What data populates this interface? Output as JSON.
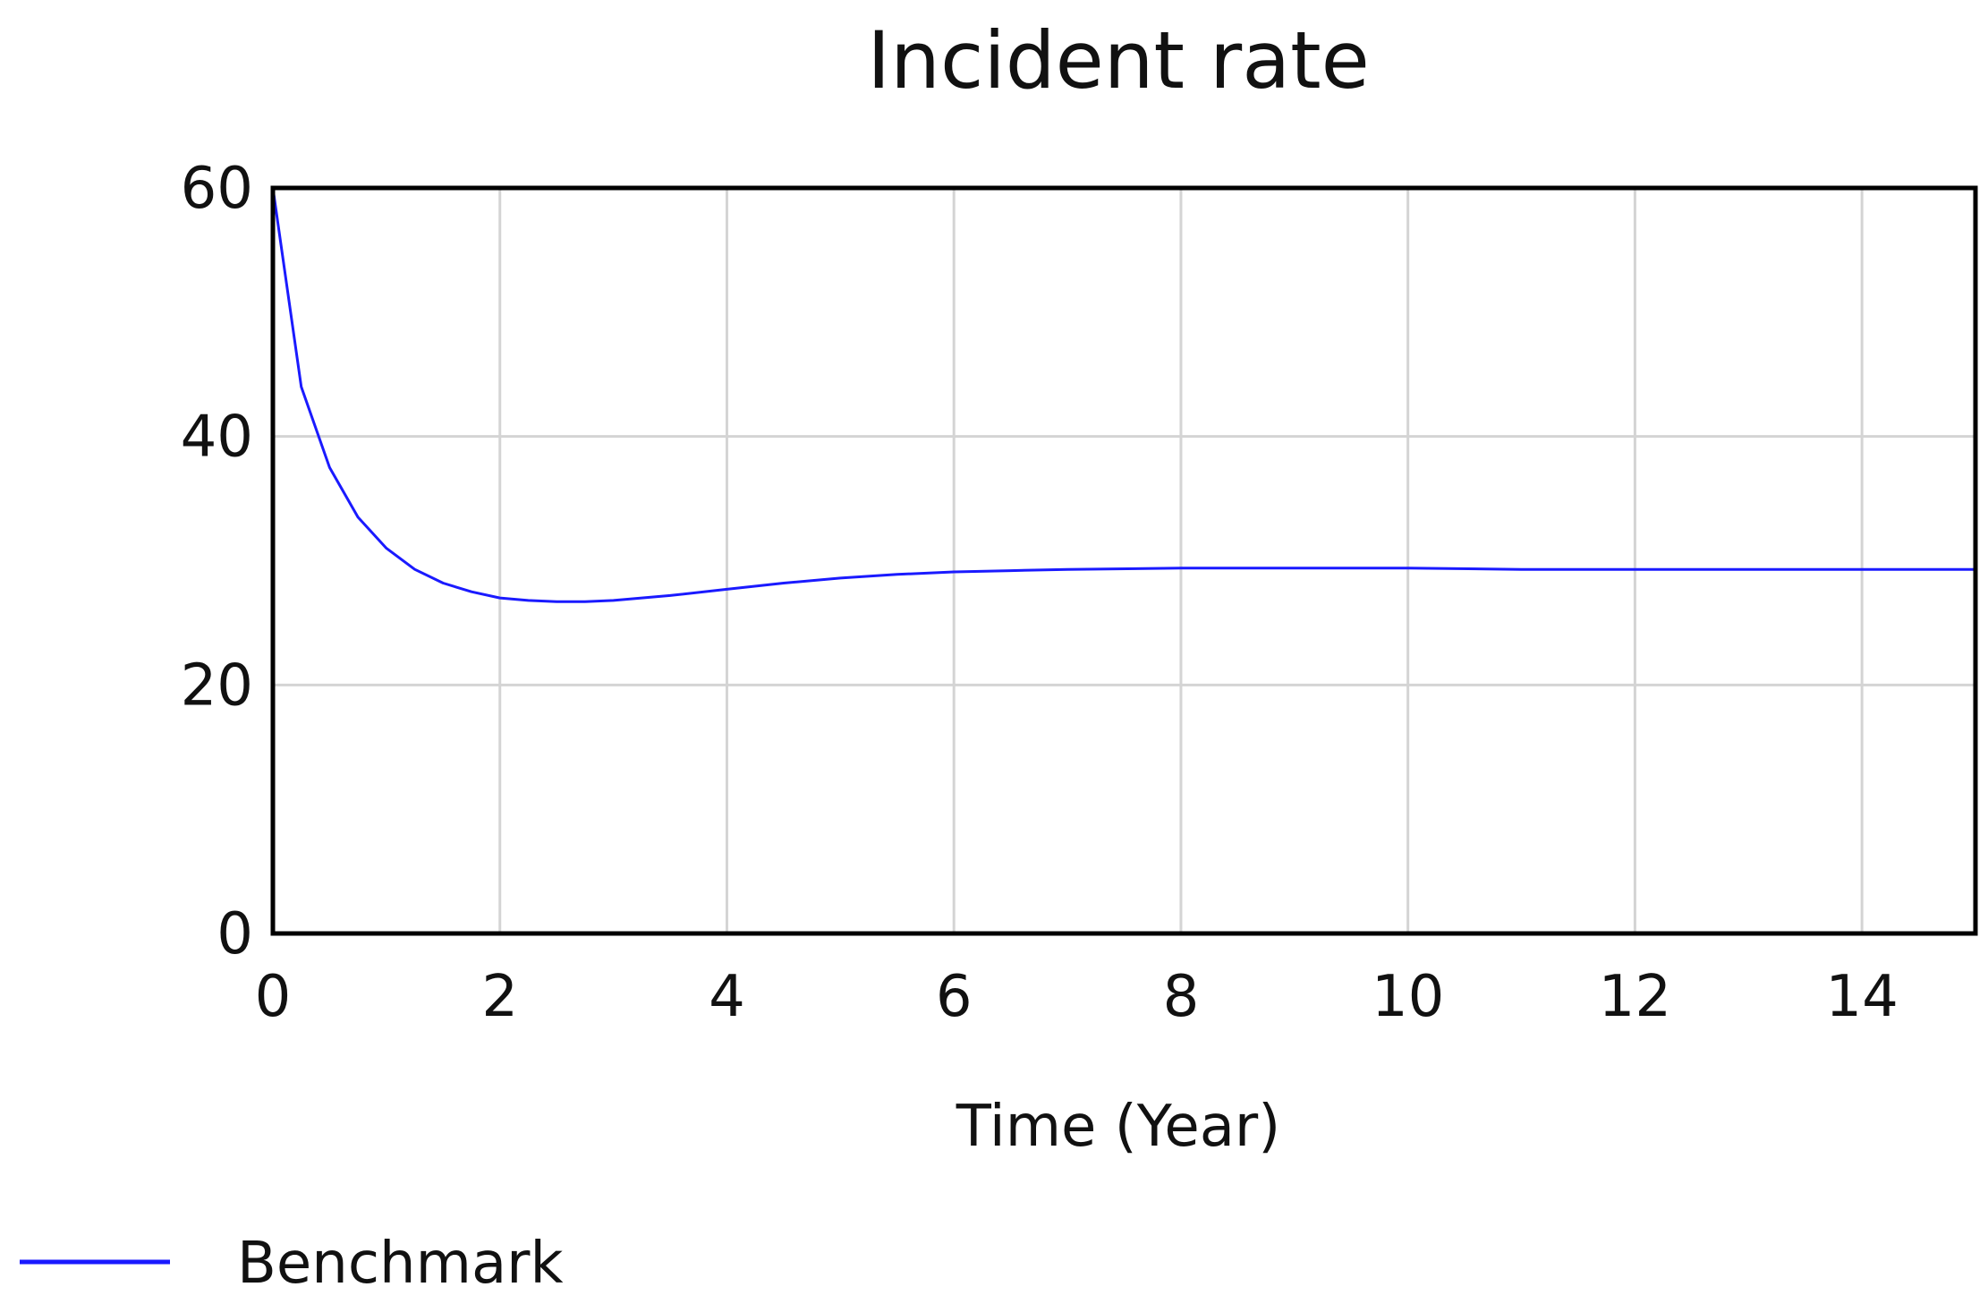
{
  "chart_data": {
    "type": "line",
    "title": "Incident rate",
    "xlabel": "Time (Year)",
    "ylabel": "",
    "xlim": [
      0,
      15
    ],
    "ylim": [
      0,
      60
    ],
    "x_ticks": [
      0,
      2,
      4,
      6,
      8,
      10,
      12,
      14
    ],
    "y_ticks": [
      0,
      20,
      40,
      60
    ],
    "grid": true,
    "legend_placement": "bottom-left",
    "series": [
      {
        "name": "Benchmark",
        "color": "#1a1aff",
        "x": [
          0,
          0.25,
          0.5,
          0.75,
          1,
          1.25,
          1.5,
          1.75,
          2,
          2.25,
          2.5,
          2.75,
          3,
          3.5,
          4,
          4.5,
          5,
          5.5,
          6,
          6.5,
          7,
          8,
          9,
          10,
          11,
          12,
          13,
          14,
          15
        ],
        "y": [
          60,
          44,
          37.5,
          33.5,
          31,
          29.3,
          28.2,
          27.5,
          27,
          26.8,
          26.7,
          26.7,
          26.8,
          27.2,
          27.7,
          28.2,
          28.6,
          28.9,
          29.1,
          29.2,
          29.3,
          29.4,
          29.4,
          29.4,
          29.3,
          29.3,
          29.3,
          29.3,
          29.3
        ]
      }
    ]
  }
}
